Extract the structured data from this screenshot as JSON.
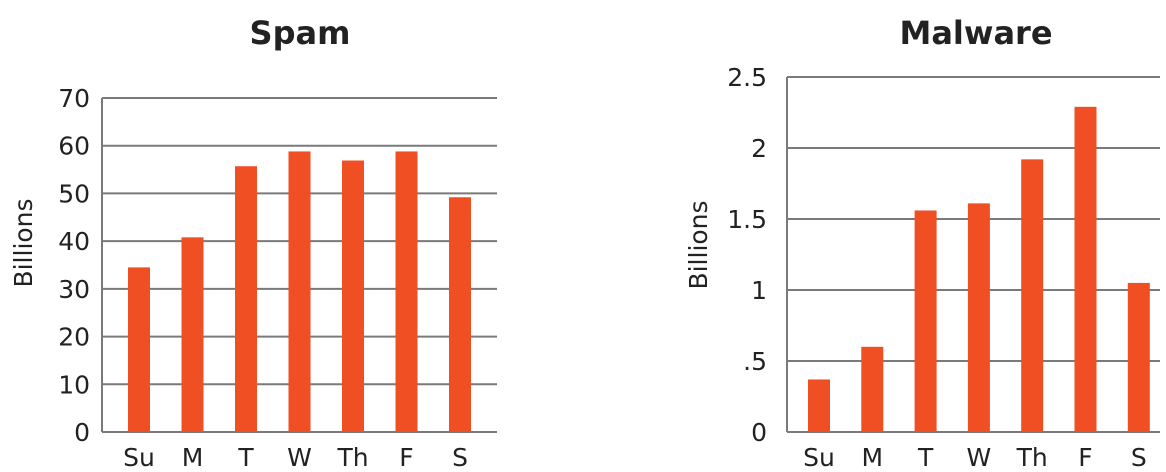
{
  "chart_data": [
    {
      "type": "bar",
      "title": "Spam",
      "xlabel": "",
      "ylabel": "Billions",
      "categories": [
        "Su",
        "M",
        "T",
        "W",
        "Th",
        "F",
        "S"
      ],
      "values": [
        34.5,
        40.8,
        55.7,
        58.8,
        56.9,
        58.8,
        49.2
      ],
      "ylim": [
        0,
        70
      ],
      "yticks": [
        0,
        10,
        20,
        30,
        40,
        50,
        60,
        70
      ],
      "ytick_labels": [
        "0",
        "10",
        "20",
        "30",
        "40",
        "50",
        "60",
        "70"
      ],
      "grid": true,
      "bar_color": "#f04e23"
    },
    {
      "type": "bar",
      "title": "Malware",
      "xlabel": "",
      "ylabel": "Billions",
      "categories": [
        "Su",
        "M",
        "T",
        "W",
        "Th",
        "F",
        "S"
      ],
      "values": [
        0.37,
        0.6,
        1.56,
        1.61,
        1.92,
        2.29,
        1.05
      ],
      "ylim": [
        0,
        2.5
      ],
      "yticks": [
        0,
        0.5,
        1,
        1.5,
        2,
        2.5
      ],
      "ytick_labels": [
        "0",
        ".5",
        "1",
        "1.5",
        "2",
        "2.5"
      ],
      "grid": true,
      "bar_color": "#f04e23"
    }
  ]
}
